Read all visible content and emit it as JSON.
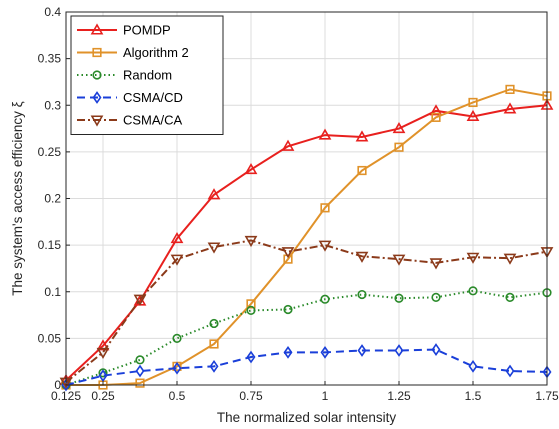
{
  "chart_data": {
    "type": "line",
    "xlabel": "The  normalized solar intensity",
    "ylabel": "The system's access efficiency ξ",
    "xlim": [
      0.125,
      1.75
    ],
    "ylim": [
      0,
      0.4
    ],
    "xticks": [
      0.125,
      0.25,
      0.5,
      0.75,
      1,
      1.25,
      1.5,
      1.75
    ],
    "xtick_labels": [
      "0.125",
      "0.25",
      "0.5",
      "0.75",
      "1",
      "1.25",
      "1.5",
      "1.75"
    ],
    "yticks": [
      0,
      0.05,
      0.1,
      0.15,
      0.2,
      0.25,
      0.3,
      0.35,
      0.4
    ],
    "ytick_labels": [
      "0",
      "0.05",
      "0.1",
      "0.15",
      "0.2",
      "0.25",
      "0.3",
      "0.35",
      "0.4"
    ],
    "grid": true,
    "legend_position": "top-left",
    "x": [
      0.125,
      0.25,
      0.375,
      0.5,
      0.625,
      0.75,
      0.875,
      1,
      1.125,
      1.25,
      1.375,
      1.5,
      1.625,
      1.75
    ],
    "series": [
      {
        "name": "POMDP",
        "color": "#e8201e",
        "dash": "solid",
        "marker": "triangle-up",
        "values": [
          0.005,
          0.042,
          0.09,
          0.157,
          0.204,
          0.231,
          0.256,
          0.268,
          0.266,
          0.275,
          0.294,
          0.288,
          0.296,
          0.3
        ]
      },
      {
        "name": "Algorithm 2",
        "color": "#e0922a",
        "dash": "solid",
        "marker": "square",
        "values": [
          0.0,
          0.0,
          0.002,
          0.02,
          0.044,
          0.087,
          0.135,
          0.19,
          0.23,
          0.255,
          0.287,
          0.303,
          0.317,
          0.31
        ]
      },
      {
        "name": "Random",
        "color": "#2a8a2a",
        "dash": "dotted",
        "marker": "circle",
        "values": [
          0.0,
          0.013,
          0.027,
          0.05,
          0.066,
          0.08,
          0.081,
          0.092,
          0.097,
          0.093,
          0.094,
          0.101,
          0.094,
          0.099
        ]
      },
      {
        "name": "CSMA/CD",
        "color": "#1a3fd9",
        "dash": "dashed",
        "marker": "diamond",
        "values": [
          0.0,
          0.01,
          0.015,
          0.018,
          0.02,
          0.03,
          0.035,
          0.035,
          0.037,
          0.037,
          0.038,
          0.02,
          0.015,
          0.014
        ]
      },
      {
        "name": "CSMA/CA",
        "color": "#8b3a1a",
        "dash": "dashdot",
        "marker": "triangle-down",
        "values": [
          0.003,
          0.035,
          0.092,
          0.135,
          0.148,
          0.155,
          0.143,
          0.15,
          0.138,
          0.135,
          0.131,
          0.137,
          0.136,
          0.143
        ]
      }
    ]
  }
}
